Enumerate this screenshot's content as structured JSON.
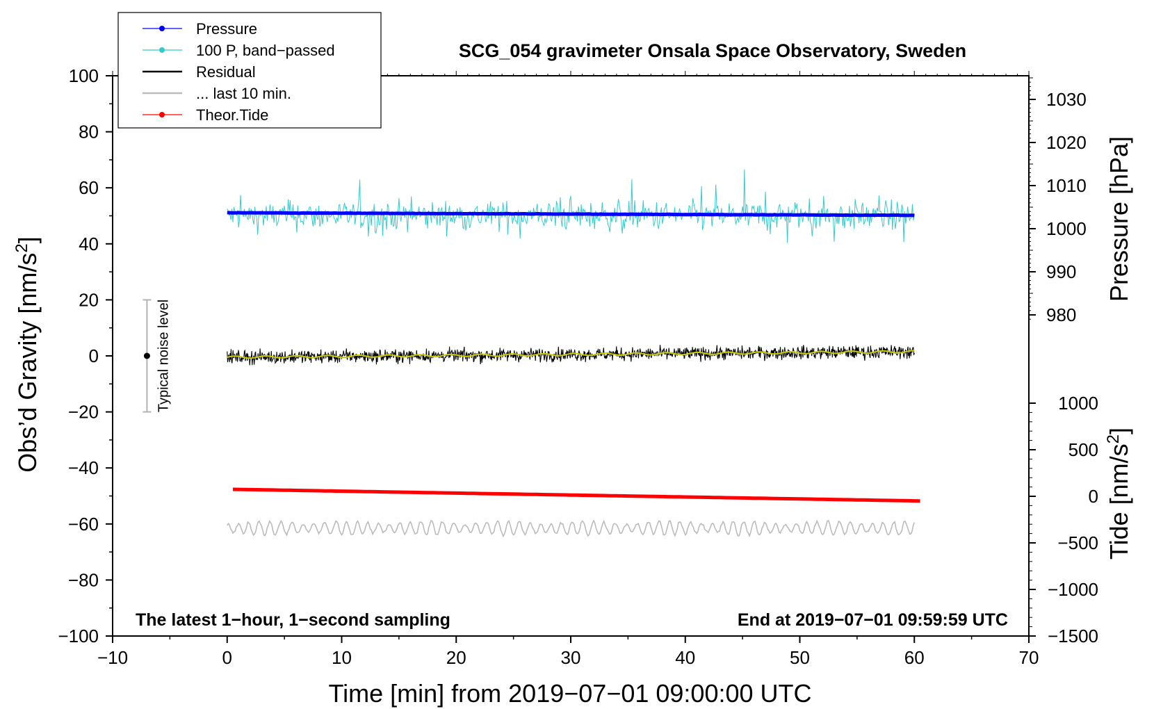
{
  "chart_data": {
    "type": "line",
    "title": "SCG_054 gravimeter Onsala Space Observatory, Sweden",
    "xlabel": "Time [min] from 2019−07−01 09:00:00 UTC",
    "ylabel_left": "Obs’d Gravity [nm/s",
    "ylabel_left_super": "2",
    "ylabel_left_close": "]",
    "ylabel_right_pressure": "Pressure [hPa]",
    "ylabel_right_tide": "Tide [nm/s",
    "ylabel_right_tide_super": "2",
    "ylabel_right_tide_close": "]",
    "xlim": [
      -10,
      70
    ],
    "ylim_left": [
      -100,
      100
    ],
    "ylim_pressure_ticks": [
      980,
      990,
      1000,
      1010,
      1020,
      1030
    ],
    "ylim_tide_ticks": [
      -1500,
      -1000,
      -500,
      0,
      500,
      1000
    ],
    "x_ticks": [
      "−10",
      "0",
      "10",
      "20",
      "30",
      "40",
      "50",
      "60",
      "70"
    ],
    "y_ticks_left": [
      "100",
      "80",
      "60",
      "40",
      "20",
      "0",
      "−20",
      "−40",
      "−60",
      "−80",
      "−100"
    ],
    "y_ticks_pressure": [
      "1030",
      "1020",
      "1010",
      "1000",
      "990",
      "980"
    ],
    "y_ticks_tide": [
      "1000",
      "500",
      "0",
      "−500",
      "−1000",
      "−1500"
    ],
    "annotation_left": "The latest 1−hour, 1−second sampling",
    "annotation_right": "End at 2019−07−01 09:59:59 UTC",
    "noise_label": "Typical noise level",
    "noise_range": [
      -20,
      20
    ],
    "noise_x": -7,
    "legend": [
      {
        "label": "Pressure",
        "color": "#0000ff",
        "marker": true
      },
      {
        "label": "100 P, band−passed",
        "color": "#33cccc",
        "marker": true
      },
      {
        "label": "Residual",
        "color": "#000000",
        "marker": false
      },
      {
        "label": "... last 10 min.",
        "color": "#bbbbbb",
        "marker": false
      },
      {
        "label": "Theor.Tide",
        "color": "#ff0000",
        "marker": true
      }
    ],
    "series": [
      {
        "name": "Pressure",
        "axis": "pressure_hPa",
        "start": 1003.7,
        "end": 1003.1,
        "x_range": [
          0,
          60
        ]
      },
      {
        "name": "100 P, band−passed",
        "axis": "gravity",
        "center": 50,
        "amplitude": 8,
        "x_range": [
          0,
          60
        ]
      },
      {
        "name": "Residual",
        "axis": "gravity",
        "start": -0.5,
        "end": 1.5,
        "amplitude": 2.5,
        "x_range": [
          0,
          60
        ]
      },
      {
        "name": "Residual smoothed",
        "axis": "gravity",
        "color": "#cccc00",
        "start": -0.5,
        "end": 1.5,
        "x_range": [
          0,
          60
        ]
      },
      {
        "name": "... last 10 min.",
        "axis": "gravity",
        "center": -61.5,
        "amplitude": 2.5,
        "x_range": [
          0,
          60
        ]
      },
      {
        "name": "Theor.Tide",
        "axis": "tide",
        "start": 75,
        "end": -50,
        "x_range": [
          0.5,
          60.5
        ]
      }
    ]
  }
}
